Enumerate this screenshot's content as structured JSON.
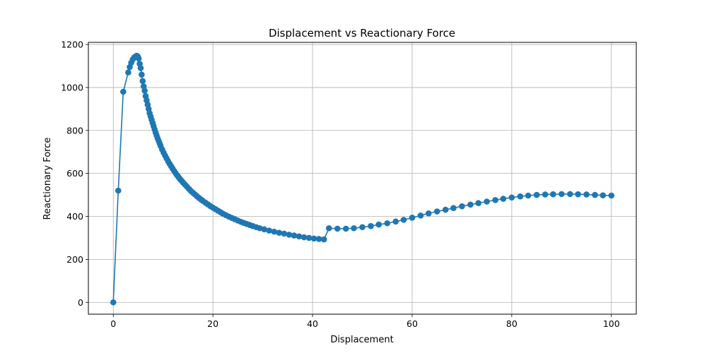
{
  "chart_data": {
    "type": "line",
    "title": "Displacement vs Reactionary Force",
    "xlabel": "Displacement",
    "ylabel": "Reactionary Force",
    "xlim": [
      -5,
      105
    ],
    "ylim": [
      -55,
      1210
    ],
    "xticks": [
      0,
      20,
      40,
      60,
      80,
      100
    ],
    "yticks": [
      0,
      200,
      400,
      600,
      800,
      1000,
      1200
    ],
    "grid": true,
    "color": "#1f77b4",
    "marker": "circle",
    "series": [
      {
        "x": [
          0,
          1,
          2,
          3,
          3.3,
          3.6,
          3.9,
          4.2,
          4.5,
          4.7,
          4.9,
          5.1,
          5.3,
          5.5,
          5.7,
          5.9,
          6.1,
          6.3,
          6.5,
          6.7,
          6.9,
          7.1,
          7.3,
          7.5,
          7.7,
          7.9,
          8.1,
          8.3,
          8.5,
          8.7,
          8.9,
          9.1,
          9.3,
          9.5,
          9.8,
          10.1,
          10.4,
          10.7,
          11.0,
          11.3,
          11.6,
          11.9,
          12.2,
          12.5,
          12.8,
          13.1,
          13.4,
          13.7,
          14.0,
          14.4,
          14.8,
          15.2,
          15.6,
          16.0,
          16.4,
          16.8,
          17.2,
          17.6,
          18.0,
          18.5,
          19.0,
          19.5,
          20.0,
          20.5,
          21.0,
          21.5,
          22.0,
          22.6,
          23.2,
          23.8,
          24.4,
          25.0,
          25.6,
          26.2,
          26.8,
          27.4,
          28.0,
          28.7,
          29.4,
          30.3,
          31.3,
          32.3,
          33.3,
          34.3,
          35.3,
          36.3,
          37.3,
          38.3,
          39.3,
          40.3,
          41.3,
          42.3,
          43.3,
          45,
          46.7,
          48.3,
          50,
          51.7,
          53.3,
          55,
          56.7,
          58.3,
          60,
          61.7,
          63.3,
          65,
          66.7,
          68.3,
          70,
          71.7,
          73.3,
          75,
          76.7,
          78.3,
          80,
          81.7,
          83.3,
          85,
          86.7,
          88.3,
          90,
          91.7,
          93.3,
          95,
          96.7,
          98.3,
          100
        ],
        "y": [
          0,
          520,
          980,
          1070,
          1095,
          1115,
          1130,
          1140,
          1145,
          1148,
          1145,
          1135,
          1110,
          1090,
          1060,
          1030,
          1005,
          985,
          960,
          940,
          920,
          900,
          880,
          865,
          850,
          835,
          820,
          805,
          790,
          777,
          764,
          752,
          740,
          728,
          712,
          697,
          683,
          670,
          657,
          645,
          634,
          623,
          612,
          602,
          592,
          583,
          574,
          566,
          558,
          548,
          538,
          528,
          518,
          510,
          502,
          494,
          486,
          479,
          472,
          464,
          456,
          448,
          441,
          434,
          427,
          420,
          413,
          406,
          399,
          393,
          387,
          381,
          375,
          370,
          365,
          360,
          355,
          350,
          345,
          340,
          334,
          329,
          324,
          320,
          315,
          311,
          307,
          303,
          300,
          297,
          295,
          293,
          345,
          343,
          343,
          345,
          350,
          355,
          362,
          368,
          376,
          384,
          394,
          404,
          414,
          423,
          431,
          439,
          447,
          455,
          462,
          469,
          476,
          482,
          488,
          493,
          497,
          500,
          502,
          503,
          504,
          504,
          503,
          502,
          500,
          498,
          497
        ]
      }
    ]
  }
}
